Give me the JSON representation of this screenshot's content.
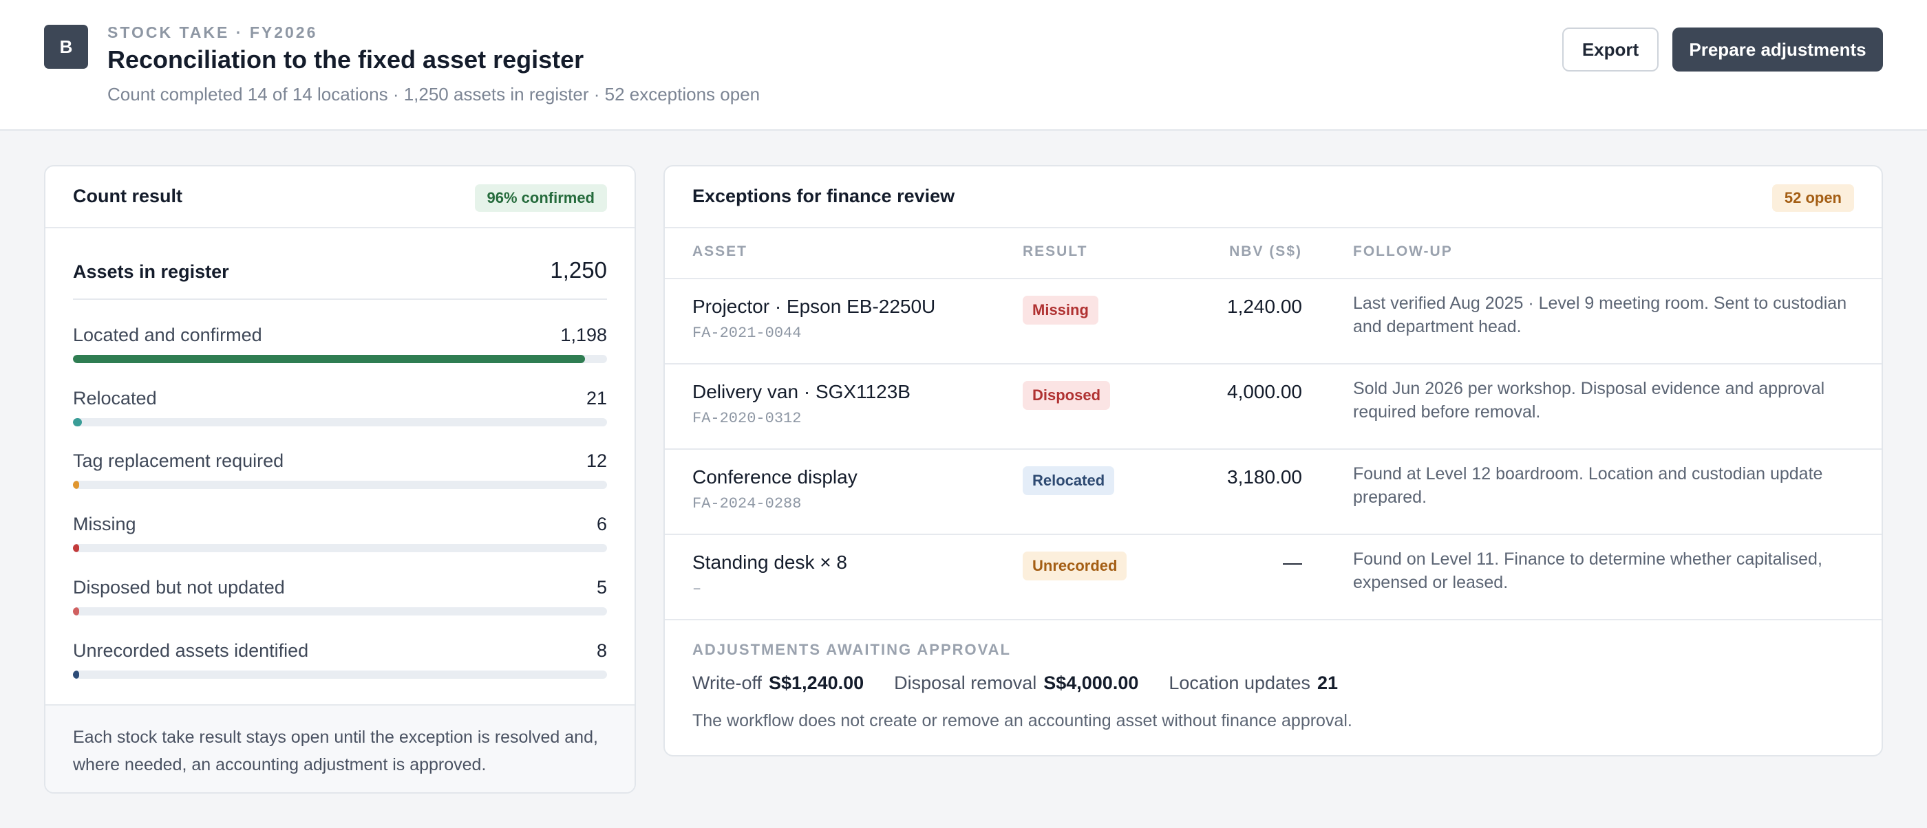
{
  "header": {
    "logo_letter": "B",
    "eyebrow": "STOCK TAKE · FY2026",
    "title": "Reconciliation to the fixed asset register",
    "subtitle": "Count completed 14 of 14 locations · 1,250 assets in register · 52 exceptions open",
    "export_label": "Export",
    "prepare_label": "Prepare adjustments"
  },
  "count_result": {
    "title": "Count result",
    "badge": "96% confirmed",
    "register_label": "Assets in register",
    "register_value": "1,250",
    "metrics": [
      {
        "label": "Located and confirmed",
        "value": "1,198",
        "fraction": 0.9584,
        "color": "#2f7d52"
      },
      {
        "label": "Relocated",
        "value": "21",
        "fraction": 0.0168,
        "color": "#3a9d97"
      },
      {
        "label": "Tag replacement required",
        "value": "12",
        "fraction": 0.0096,
        "color": "#e0962f"
      },
      {
        "label": "Missing",
        "value": "6",
        "fraction": 0.0048,
        "color": "#c23a3a"
      },
      {
        "label": "Disposed but not updated",
        "value": "5",
        "fraction": 0.004,
        "color": "#d06060"
      },
      {
        "label": "Unrecorded assets identified",
        "value": "8",
        "fraction": 0.0064,
        "color": "#2d4c78"
      }
    ],
    "footnote": "Each stock take result stays open until the exception is resolved and, where needed, an accounting adjustment is approved."
  },
  "exceptions": {
    "title": "Exceptions for finance review",
    "badge": "52 open",
    "columns": {
      "asset": "ASSET",
      "result": "RESULT",
      "nbv": "NBV (S$)",
      "follow": "FOLLOW-UP"
    },
    "rows": [
      {
        "name": "Projector · Epson EB-2250U",
        "code": "FA-2021-0044",
        "result": "Missing",
        "nbv": "1,240.00",
        "follow": "Last verified Aug 2025 · Level 9 meeting room. Sent to custodian and department head."
      },
      {
        "name": "Delivery van · SGX1123B",
        "code": "FA-2020-0312",
        "result": "Disposed",
        "nbv": "4,000.00",
        "follow": "Sold Jun 2026 per workshop. Disposal evidence and approval required before removal."
      },
      {
        "name": "Conference display",
        "code": "FA-2024-0288",
        "result": "Relocated",
        "nbv": "3,180.00",
        "follow": "Found at Level 12 boardroom. Location and custodian update prepared."
      },
      {
        "name": "Standing desk × 8",
        "code": "–",
        "result": "Unrecorded",
        "nbv": "—",
        "follow": "Found on Level 11. Finance to determine whether capitalised, expensed or leased."
      }
    ],
    "adjustments": {
      "title": "ADJUSTMENTS AWAITING APPROVAL",
      "writeoff_label": "Write-off",
      "writeoff_value": "S$1,240.00",
      "disposal_label": "Disposal removal",
      "disposal_value": "S$4,000.00",
      "location_label": "Location updates",
      "location_value": "21",
      "note": "The workflow does not create or remove an accounting asset without finance approval."
    }
  }
}
